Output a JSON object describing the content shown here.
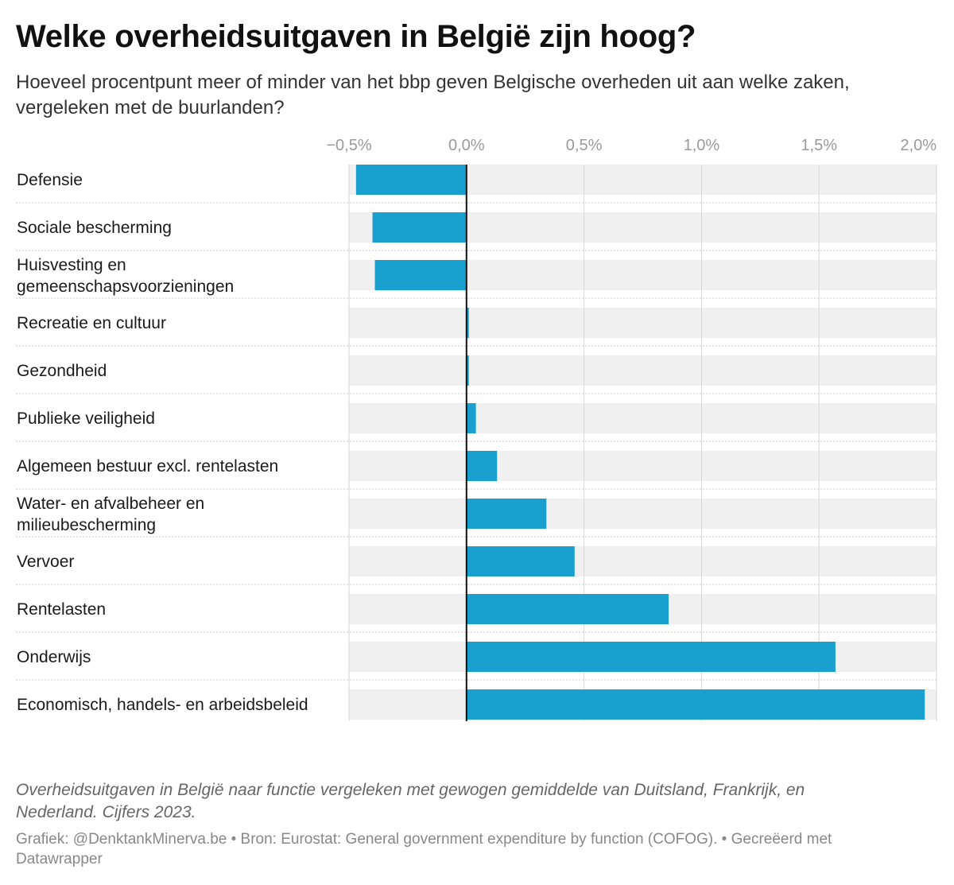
{
  "header": {
    "title": "Welke overheidsuitgaven in België zijn hoog?",
    "subtitle": "Hoeveel procentpunt meer of minder van het bbp geven Belgische overheden uit aan welke zaken, vergeleken met de buurlanden?"
  },
  "footer": {
    "note": "Overheidsuitgaven in België naar functie vergeleken met gewogen gemiddelde van Duitsland, Frankrijk, en Nederland. Cijfers 2023.",
    "credits": "Grafiek: @DenktankMinerva.be • Bron: Eurostat: General government expenditure by function (COFOG). • Gecreëerd met Datawrapper"
  },
  "colors": {
    "bar": "#1aa0cf",
    "row_band": "#f0f0f0",
    "gridline": "#d6d6d6",
    "zero_line": "#111111",
    "separator": "#c8c8c8"
  },
  "chart_data": {
    "type": "bar",
    "orientation": "horizontal",
    "title": "Welke overheidsuitgaven in België zijn hoog?",
    "xlabel": "",
    "ylabel": "",
    "xlim": [
      -0.5,
      2.0
    ],
    "ticks": [
      -0.5,
      0.0,
      0.5,
      1.0,
      1.5,
      2.0
    ],
    "tick_labels": [
      "−0,5%",
      "0,0%",
      "0,5%",
      "1,0%",
      "1,5%",
      "2,0%"
    ],
    "categories": [
      [
        "Defensie"
      ],
      [
        "Sociale bescherming"
      ],
      [
        "Huisvesting en",
        "gemeenschapsvoorzieningen"
      ],
      [
        "Recreatie en cultuur"
      ],
      [
        "Gezondheid"
      ],
      [
        "Publieke veiligheid"
      ],
      [
        "Algemeen bestuur excl. rentelasten"
      ],
      [
        "Water- en afvalbeheer en",
        "milieubescherming"
      ],
      [
        "Vervoer"
      ],
      [
        "Rentelasten"
      ],
      [
        "Onderwijs"
      ],
      [
        "Economisch, handels- en arbeidsbeleid"
      ]
    ],
    "values": [
      -0.47,
      -0.4,
      -0.39,
      0.01,
      0.01,
      0.04,
      0.13,
      0.34,
      0.46,
      0.86,
      1.57,
      1.95
    ]
  }
}
